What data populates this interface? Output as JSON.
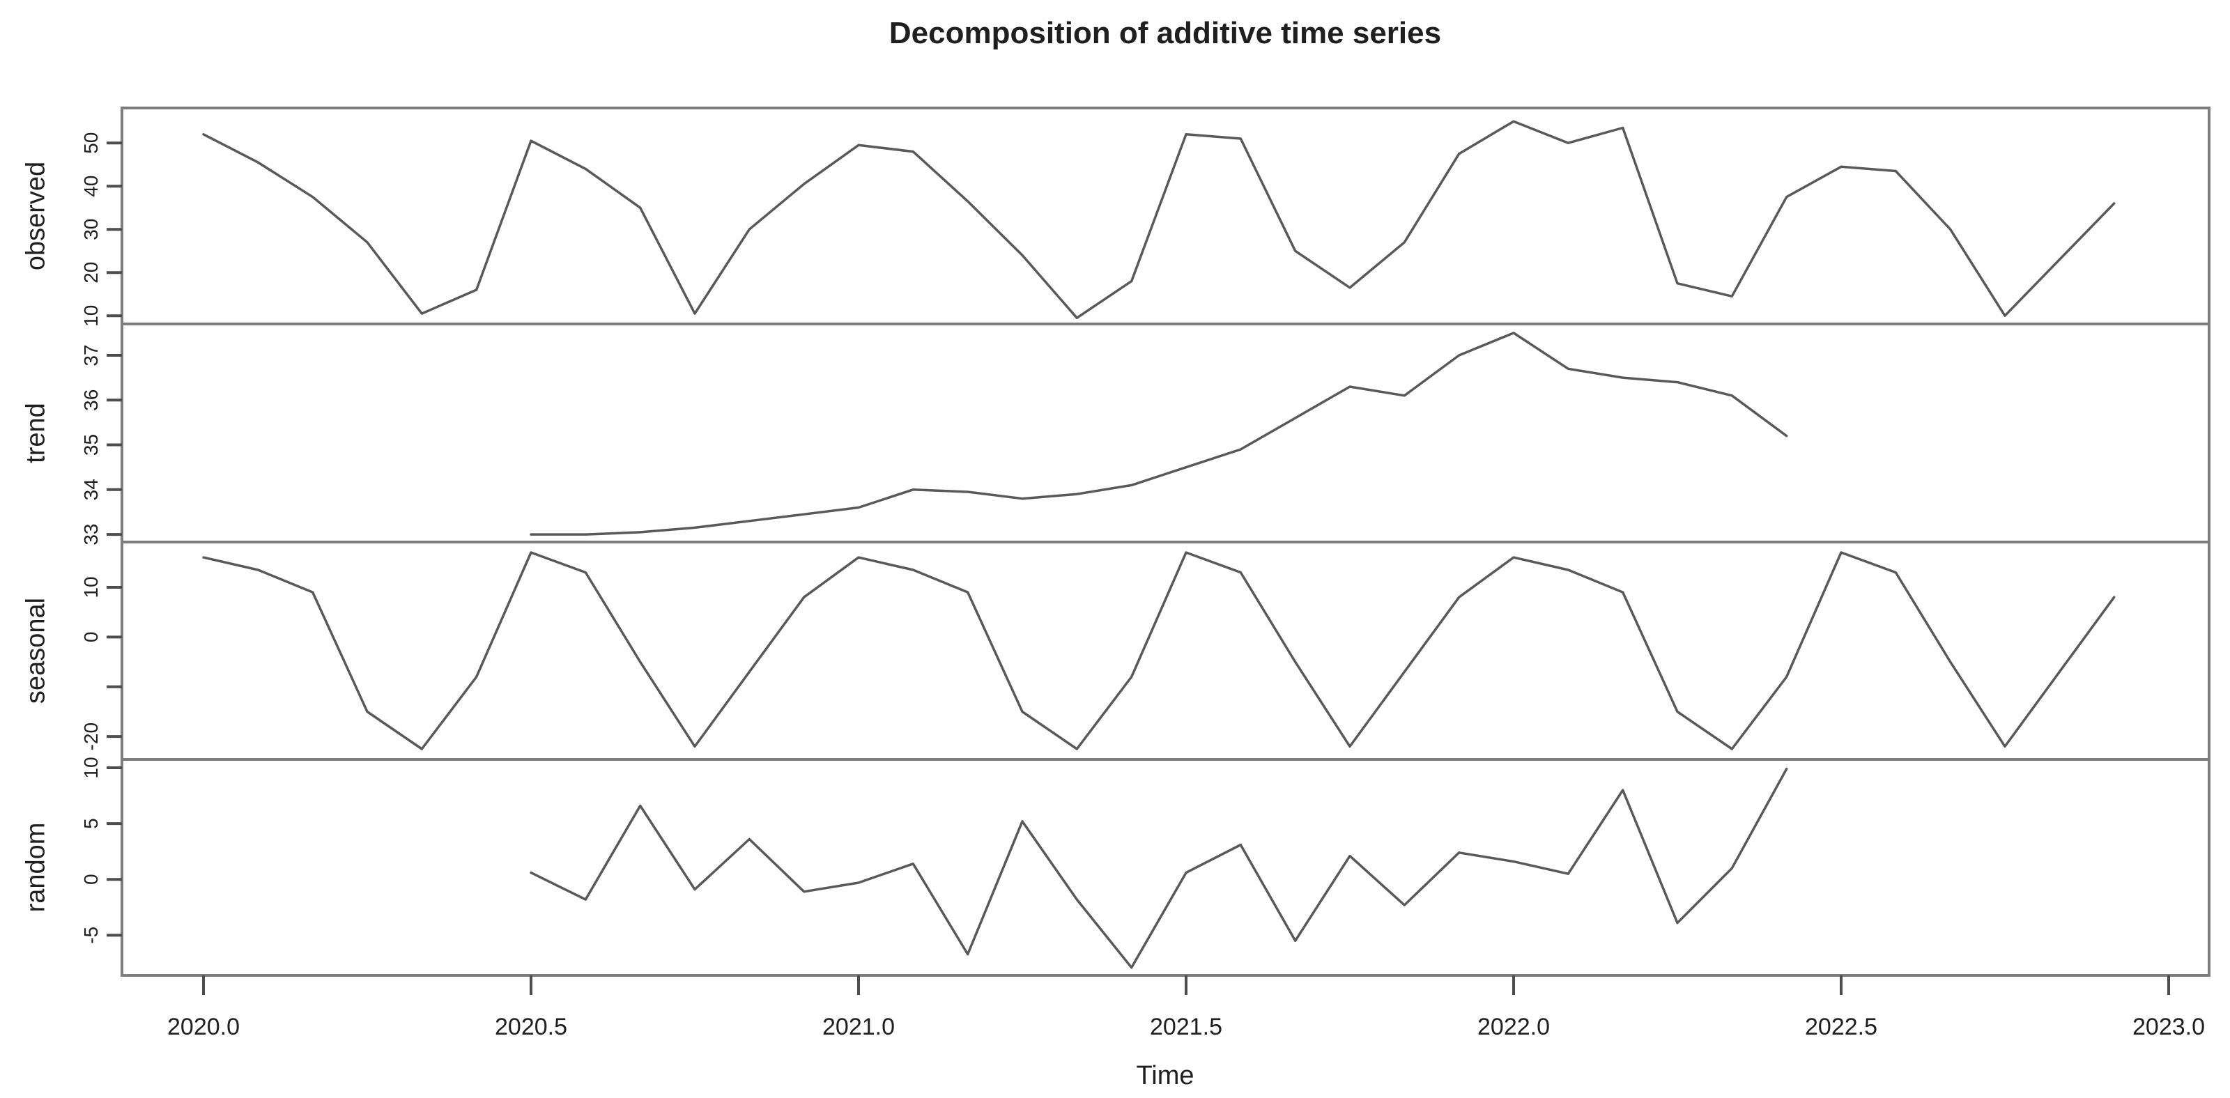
{
  "title": "Decomposition of additive time series",
  "x_axis": {
    "label": "Time"
  },
  "colors": {
    "series_line": "#595959",
    "panel_frame": "#7d7d7d",
    "tick_mark": "#4d4d4d",
    "text": "#1f1f1f",
    "background": "#ffffff"
  },
  "chart_data": {
    "type": "line",
    "title": "Decomposition of additive time series",
    "xlabel": "Time",
    "grid": false,
    "legend": "none",
    "points_per_year": 12,
    "x_range": [
      2019.88,
      2023.06
    ],
    "x_tick_values": [
      2020.0,
      2020.5,
      2021.0,
      2021.5,
      2022.0,
      2022.5,
      2023.0
    ],
    "x_tick_labels": [
      "2020.0",
      "2020.5",
      "2021.0",
      "2021.5",
      "2022.0",
      "2022.5",
      "2023.0"
    ],
    "panels": [
      {
        "label": "observed",
        "x_start": 2020.0,
        "ylim": [
          8.1,
          58.1
        ],
        "yticks": [
          {
            "v": 10,
            "label": "10"
          },
          {
            "v": 20,
            "label": "20"
          },
          {
            "v": 30,
            "label": "30"
          },
          {
            "v": 40,
            "label": "40"
          },
          {
            "v": 50,
            "label": "50"
          }
        ],
        "values": [
          52,
          45.5,
          37.5,
          27,
          10.5,
          16,
          50.5,
          44,
          35,
          10.5,
          30,
          40.5,
          49.5,
          48,
          36.5,
          24,
          9.5,
          18,
          52,
          51,
          25,
          16.5,
          27,
          47.5,
          55,
          50,
          53.5,
          17.5,
          14.5,
          37.5,
          44.5,
          43.5,
          30,
          10,
          23,
          36
        ]
      },
      {
        "label": "trend",
        "x_start": 2020.5,
        "ylim": [
          32.83,
          37.7
        ],
        "yticks": [
          {
            "v": 33,
            "label": "33"
          },
          {
            "v": 34,
            "label": "34"
          },
          {
            "v": 35,
            "label": "35"
          },
          {
            "v": 36,
            "label": "36"
          },
          {
            "v": 37,
            "label": "37"
          }
        ],
        "values": [
          33.0,
          33.0,
          33.05,
          33.15,
          33.3,
          33.45,
          33.6,
          34.0,
          33.95,
          33.8,
          33.9,
          34.1,
          34.5,
          34.9,
          35.6,
          36.3,
          36.1,
          37.0,
          37.5,
          36.7,
          36.5,
          36.4,
          36.1,
          35.2
        ]
      },
      {
        "label": "seasonal",
        "x_start": 2020.0,
        "ylim": [
          -24.6,
          19.1
        ],
        "yticks": [
          {
            "v": 10,
            "label": "10"
          },
          {
            "v": 0,
            "label": "0"
          },
          {
            "v": -10,
            "label": ""
          },
          {
            "v": -20,
            "label": "-20"
          }
        ],
        "pattern": [
          16,
          13.5,
          9,
          -15,
          -22.5,
          -8,
          17,
          13,
          -5,
          -22,
          -7,
          8
        ],
        "values": [
          16,
          13.5,
          9,
          -15,
          -22.5,
          -8,
          17,
          13,
          -5,
          -22,
          -7,
          8,
          16,
          13.5,
          9,
          -15,
          -22.5,
          -8,
          17,
          13,
          -5,
          -22,
          -7,
          8,
          16,
          13.5,
          9,
          -15,
          -22.5,
          -8,
          17,
          13,
          -5,
          -22,
          -7,
          8
        ]
      },
      {
        "label": "random",
        "x_start": 2020.5,
        "ylim": [
          -8.6,
          10.75
        ],
        "yticks": [
          {
            "v": 10,
            "label": "10"
          },
          {
            "v": 5,
            "label": "5"
          },
          {
            "v": 0,
            "label": "0"
          },
          {
            "v": -5,
            "label": "-5"
          }
        ],
        "values": [
          0.6,
          -1.8,
          6.6,
          -0.9,
          3.6,
          -1.1,
          -0.3,
          1.4,
          -6.7,
          5.2,
          -1.8,
          -7.9,
          0.6,
          3.1,
          -5.5,
          2.1,
          -2.3,
          2.4,
          1.6,
          0.5,
          8.0,
          -3.9,
          1.0,
          9.9
        ]
      }
    ]
  }
}
